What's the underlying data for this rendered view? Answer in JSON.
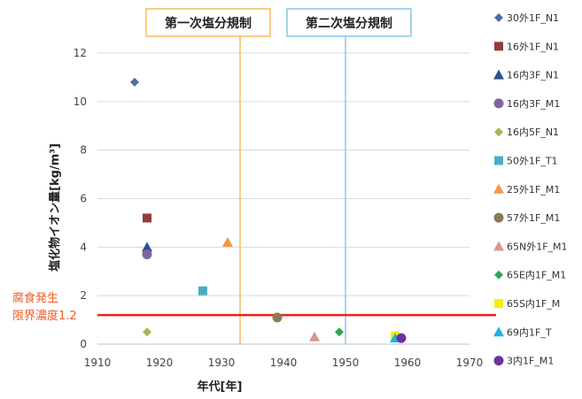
{
  "chart_data": {
    "type": "scatter",
    "xlabel": "年代[年]",
    "ylabel": "塩化物イオン量[kg/m³]",
    "xlim": [
      1910,
      1970
    ],
    "ylim": [
      0,
      12
    ],
    "xticks": [
      1910,
      1920,
      1930,
      1940,
      1950,
      1960,
      1970
    ],
    "yticks": [
      0,
      2,
      4,
      6,
      8,
      10,
      12
    ],
    "grid": "horizontal",
    "legend": "right",
    "vlines": [
      {
        "x": 1933,
        "label": "第一次塩分規制",
        "color": "#f5c26b"
      },
      {
        "x": 1950,
        "label": "第二次塩分規制",
        "color": "#8ecbea"
      }
    ],
    "hline": {
      "y": 1.2,
      "label_line1": "腐食発生",
      "label_line2": "限界濃度1.2",
      "color": "#e8231e"
    },
    "series": [
      {
        "name": "30外1F_N1",
        "marker": "diamond",
        "color": "#4a6fa5",
        "x": [
          1916
        ],
        "y": [
          10.8
        ]
      },
      {
        "name": "16外1F_N1",
        "marker": "square",
        "color": "#943c3c",
        "x": [
          1918
        ],
        "y": [
          5.2
        ]
      },
      {
        "name": "16内3F_N1",
        "marker": "triangle",
        "color": "#2f4f8f",
        "x": [
          1918
        ],
        "y": [
          4.0
        ]
      },
      {
        "name": "16内3F_M1",
        "marker": "circle",
        "color": "#8064a2",
        "x": [
          1918
        ],
        "y": [
          3.7
        ]
      },
      {
        "name": "16内5F_N1",
        "marker": "diamond",
        "color": "#9bbb59",
        "x": [
          1918
        ],
        "y": [
          0.5
        ]
      },
      {
        "name": "50外1F_T1",
        "marker": "square",
        "color": "#4bacc6",
        "x": [
          1927
        ],
        "y": [
          2.2
        ]
      },
      {
        "name": "25外1F_M1",
        "marker": "triangle",
        "color": "#f79646",
        "x": [
          1931
        ],
        "y": [
          4.2
        ]
      },
      {
        "name": "57外1F_M1",
        "marker": "circle",
        "color": "#8c7b52",
        "x": [
          1939
        ],
        "y": [
          1.1
        ]
      },
      {
        "name": "65N外1F_M1",
        "marker": "triangle",
        "color": "#d99694",
        "x": [
          1945
        ],
        "y": [
          0.3
        ]
      },
      {
        "name": "65E内1F_M1",
        "marker": "diamond",
        "color": "#2ea84f",
        "x": [
          1949
        ],
        "y": [
          0.5
        ]
      },
      {
        "name": "65S内1F_M",
        "marker": "square",
        "color": "#f2f200",
        "x": [
          1958
        ],
        "y": [
          0.35
        ]
      },
      {
        "name": "69内1F_T",
        "marker": "triangle",
        "color": "#1fb3e6",
        "x": [
          1958
        ],
        "y": [
          0.25
        ]
      },
      {
        "name": "3内1F_M1",
        "marker": "circle",
        "color": "#7030a0",
        "x": [
          1959
        ],
        "y": [
          0.25
        ]
      }
    ]
  }
}
